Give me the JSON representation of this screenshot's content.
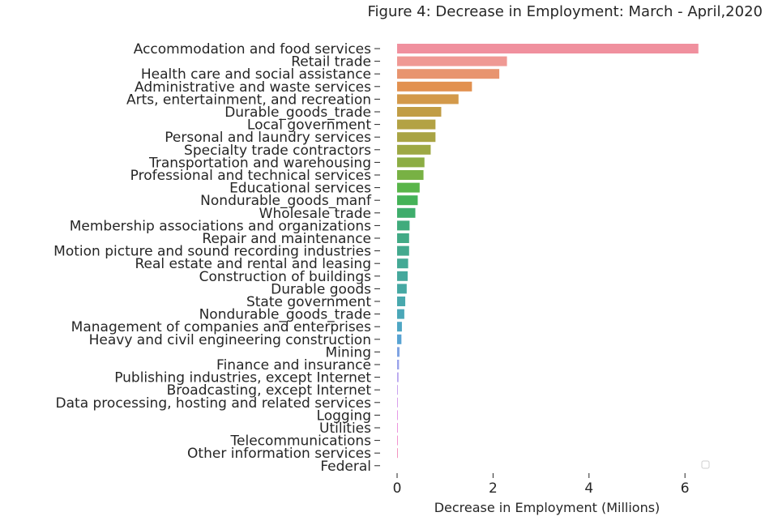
{
  "chart_data": {
    "type": "bar",
    "orientation": "horizontal",
    "title": "Figure 4: Decrease in Employment: March - April,2020",
    "xlabel": "Decrease in Employment (Millions)",
    "ylabel": "",
    "xlim": [
      -0.3,
      6.6
    ],
    "xticks": [
      0,
      2,
      4,
      6
    ],
    "grid": false,
    "legend": "bottom-right (empty)",
    "categories": [
      "Accommodation and food services",
      "Retail trade",
      "Health care and social assistance",
      "Administrative and waste services",
      "Arts, entertainment, and recreation",
      "Durable_goods_trade",
      "Local government",
      "Personal and laundry services",
      "Specialty trade contractors",
      "Transportation and warehousing",
      "Professional and technical services",
      "Educational services",
      "Nondurable_goods_manf",
      "Wholesale trade",
      "Membership associations and organizations",
      "Repair and maintenance",
      "Motion picture and sound recording industries",
      "Real estate and rental and leasing",
      "Construction of buildings",
      "Durable goods",
      "State government",
      "Nondurable_goods_trade",
      "Management of companies and enterprises",
      "Heavy and civil engineering construction",
      "Mining",
      "Finance and insurance",
      "Publishing industries, except Internet",
      "Broadcasting, except Internet",
      "Data processing, hosting and related services",
      "Logging",
      "Utilities",
      "Telecommunications",
      "Other information services",
      "Federal"
    ],
    "values": [
      6.28,
      2.29,
      2.13,
      1.56,
      1.28,
      0.92,
      0.8,
      0.8,
      0.7,
      0.57,
      0.55,
      0.47,
      0.43,
      0.38,
      0.26,
      0.25,
      0.25,
      0.23,
      0.22,
      0.2,
      0.17,
      0.15,
      0.1,
      0.09,
      0.05,
      0.04,
      0.03,
      0.01,
      0.01,
      0.01,
      0.01,
      0.01,
      0.01,
      0.0
    ],
    "colors": [
      "#f0909e",
      "#ef9994",
      "#e8946f",
      "#e29150",
      "#d3994a",
      "#c19d45",
      "#b3a244",
      "#a9a444",
      "#9da844",
      "#8cad44",
      "#78b144",
      "#59b54a",
      "#44b257",
      "#3fad6c",
      "#40ab7c",
      "#42aa86",
      "#43a98e",
      "#44a995",
      "#45a89c",
      "#46a8a3",
      "#48a8ad",
      "#4aa7b8",
      "#4ea6c4",
      "#58a3d3",
      "#7ea2e2",
      "#99a2ea",
      "#b6a4ee",
      "#c9a2ee",
      "#d9a0ec",
      "#e59ae7",
      "#ed95de",
      "#f193cf",
      "#f195bf",
      "#f196b0"
    ]
  }
}
